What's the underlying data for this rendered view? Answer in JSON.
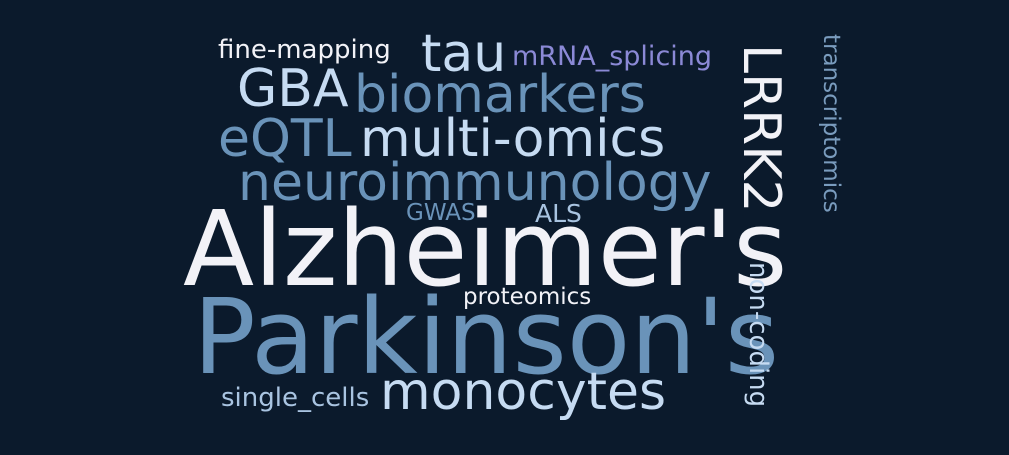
{
  "colors": {
    "background": "#0b1a2c",
    "white": "#f2f2f7",
    "pale_blue": "#c6dbf2",
    "light_blue": "#a9c4e1",
    "mid_blue": "#6a93b9",
    "steel_blue": "#7a9cbe",
    "lavender": "#8b89d6"
  },
  "words": {
    "alzheimers": "Alzheimer's",
    "parkinsons": "Parkinson's",
    "lrrk2": "LRRK2",
    "monocytes": "monocytes",
    "neuroimmunology": "neuroimmunology",
    "multi_omics": "multi-omics",
    "biomarkers": "biomarkers",
    "gba": "GBA",
    "tau": "tau",
    "eqtl": "eQTL",
    "fine_mapping": "fine-mapping",
    "mrna_splicing": "mRNA_splicing",
    "transcriptomics": "transcriptomics",
    "non_coding": "non-coding",
    "proteomics": "proteomics",
    "single_cells": "single_cells",
    "gwas": "GWAS",
    "als": "ALS"
  }
}
